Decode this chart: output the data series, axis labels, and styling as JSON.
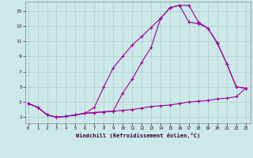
{
  "xlabel": "Windchill (Refroidissement éolien,°C)",
  "background_color": "#cce8e8",
  "grid_color": "#aacccc",
  "line_color": "#990099",
  "x_ticks": [
    0,
    1,
    2,
    3,
    4,
    5,
    6,
    7,
    8,
    9,
    10,
    11,
    12,
    13,
    14,
    15,
    16,
    17,
    18,
    19,
    20,
    21,
    22,
    23
  ],
  "y_ticks": [
    1,
    3,
    5,
    7,
    9,
    11,
    13,
    15
  ],
  "xlim": [
    -0.3,
    23.5
  ],
  "ylim": [
    0.2,
    16.2
  ],
  "line1_x": [
    0,
    1,
    2,
    3,
    4,
    5,
    6,
    7,
    8,
    9,
    10,
    11,
    12,
    13,
    14,
    15,
    16,
    17,
    18,
    19,
    20,
    21,
    22,
    23
  ],
  "line1_y": [
    2.8,
    2.3,
    1.3,
    1.0,
    1.1,
    1.3,
    1.5,
    1.6,
    1.7,
    1.8,
    1.9,
    2.0,
    2.2,
    2.4,
    2.5,
    2.6,
    2.8,
    3.0,
    3.1,
    3.2,
    3.4,
    3.5,
    3.7,
    4.8
  ],
  "line2_x": [
    0,
    1,
    2,
    3,
    4,
    5,
    6,
    7,
    8,
    9,
    10,
    11,
    12,
    13,
    14,
    15,
    16,
    17,
    18,
    19,
    20,
    21,
    22,
    23
  ],
  "line2_y": [
    2.8,
    2.3,
    1.3,
    1.0,
    1.1,
    1.3,
    1.5,
    1.6,
    1.7,
    1.8,
    4.2,
    6.0,
    8.2,
    10.2,
    14.0,
    15.4,
    15.7,
    15.7,
    13.5,
    12.7,
    10.8,
    8.0,
    5.0,
    4.8
  ],
  "line3_x": [
    0,
    1,
    2,
    3,
    4,
    5,
    6,
    7,
    8,
    9,
    10,
    11,
    12,
    13,
    14,
    15,
    16,
    17,
    18,
    19,
    20,
    21,
    22,
    23
  ],
  "line3_y": [
    2.8,
    2.3,
    1.3,
    1.0,
    1.1,
    1.3,
    1.5,
    2.3,
    5.0,
    7.5,
    9.0,
    10.5,
    11.6,
    12.8,
    14.0,
    15.4,
    15.7,
    13.5,
    13.3,
    12.7,
    10.7,
    8.0,
    5.0,
    4.8
  ]
}
